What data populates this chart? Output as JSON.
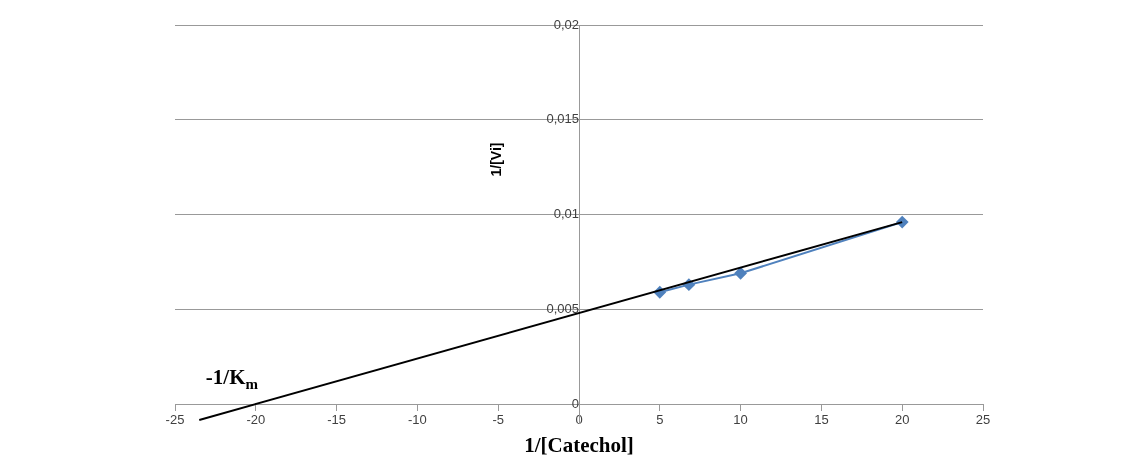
{
  "chart_data": {
    "type": "scatter",
    "xlabel": "1/[Catechol]",
    "ylabel": "1/[Vi]",
    "series": [
      {
        "type": "line",
        "color": "#4f81bd",
        "marker": "diamond",
        "x": [
          5,
          6.8,
          10,
          20
        ],
        "values": [
          0.0059,
          0.0063,
          0.0069,
          0.0096
        ]
      },
      {
        "type": "line",
        "color": "#000000",
        "marker": "none",
        "x": [
          -23.5,
          20
        ],
        "values": [
          -0.00084,
          0.0096
        ]
      }
    ],
    "xlim": [
      -25,
      25
    ],
    "xticks": [
      -25,
      -20,
      -15,
      -10,
      -5,
      0,
      5,
      10,
      15,
      20,
      25
    ],
    "ylim": [
      -0.001,
      0.02
    ],
    "yticks": [
      {
        "value": 0,
        "label": "0"
      },
      {
        "value": 0.005,
        "label": "0,005"
      },
      {
        "value": 0.01,
        "label": "0,01"
      },
      {
        "value": 0.015,
        "label": "0,015"
      },
      {
        "value": 0.02,
        "label": "0,02"
      }
    ],
    "grid": "y",
    "legend": false,
    "annotations": [
      {
        "text": "-1/K$_{m}$",
        "x": -20,
        "y": 0
      }
    ]
  }
}
